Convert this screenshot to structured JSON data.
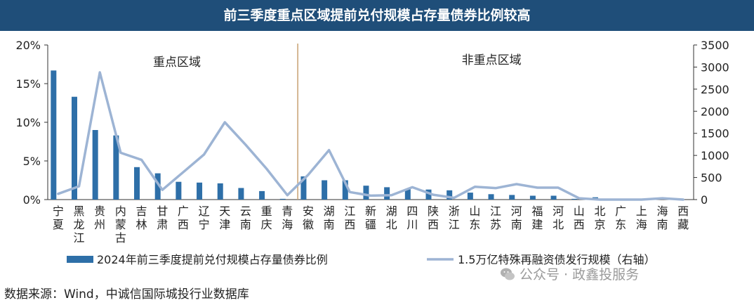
{
  "header": {
    "title": "前三季度重点区域提前兑付规模占存量债券比例较高"
  },
  "chart_data": {
    "type": "bar",
    "categories": [
      "宁夏",
      "黑龙江",
      "贵州",
      "内蒙古",
      "吉林",
      "甘肃",
      "广西",
      "辽宁",
      "天津",
      "云南",
      "重庆",
      "青海",
      "安徽",
      "湖南",
      "江西",
      "新疆",
      "湖北",
      "四川",
      "陕西",
      "浙江",
      "山东",
      "江苏",
      "河南",
      "福建",
      "河北",
      "山西",
      "北京",
      "广东",
      "上海",
      "海南",
      "西藏"
    ],
    "series": [
      {
        "name": "2024年前三季度提前兑付规模占存量债券比例",
        "type": "bar",
        "axis": "left",
        "values": [
          16.7,
          13.3,
          9.0,
          8.3,
          4.2,
          3.4,
          2.3,
          2.2,
          2.1,
          1.5,
          1.1,
          0.1,
          3.0,
          2.5,
          2.5,
          1.8,
          1.6,
          1.4,
          1.3,
          1.2,
          0.9,
          0.7,
          0.6,
          0.5,
          0.5,
          0.1,
          0.3,
          0.1,
          0.1,
          0.1,
          0.0
        ]
      },
      {
        "name": "1.5万亿特殊再融资债发行规模（右轴）",
        "type": "line",
        "axis": "right",
        "values": [
          130,
          300,
          2880,
          1060,
          900,
          220,
          620,
          1020,
          1750,
          1240,
          700,
          100,
          560,
          1120,
          170,
          90,
          100,
          280,
          110,
          40,
          290,
          260,
          350,
          270,
          270,
          30,
          0,
          0,
          0,
          30,
          0
        ]
      }
    ],
    "y_left": {
      "range": [
        0,
        20
      ],
      "ticks": [
        "0%",
        "5%",
        "10%",
        "15%",
        "20%"
      ]
    },
    "y_right": {
      "range": [
        0,
        3500
      ],
      "ticks": [
        "0",
        "500",
        "1000",
        "1500",
        "2000",
        "2500",
        "3000",
        "3500"
      ]
    },
    "annotations": {
      "key_region": "重点区域",
      "non_key_region": "非重点区域"
    },
    "divider_after_index": 11,
    "legend_position": "bottom",
    "colors": {
      "bar": "#2e6fa8",
      "line": "#9db4d4",
      "divider": "#c8a070",
      "title_bg": "#1f4e79"
    }
  },
  "footer": {
    "source": "数据来源：Wind，中诚信国际城投行业数据库",
    "watermark": "公众号 · 政鑫投服务"
  }
}
